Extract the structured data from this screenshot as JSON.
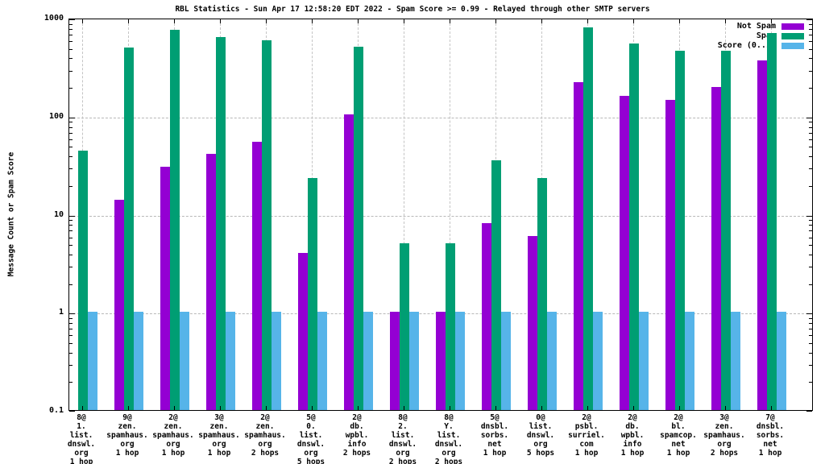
{
  "chart_data": {
    "type": "bar",
    "scale": "log",
    "title": "RBL Statistics - Sun Apr 17 12:58:20 EDT 2022 - Spam Score >= 0.99 - Relayed through other SMTP servers",
    "ylabel": "Message Count or Spam Score",
    "ylim": [
      0.1,
      1000
    ],
    "ytick_labels": [
      "1000",
      "100",
      "10",
      "1",
      "0.1"
    ],
    "ytick_values": [
      1000,
      100,
      10,
      1,
      0.1
    ],
    "grid_h_values": [
      1,
      10,
      100
    ],
    "grid": "on",
    "legend_position": "top-right-inside",
    "categories": [
      [
        "8@",
        "1.",
        "list.",
        "dnswl.",
        "org",
        "1 hop"
      ],
      [
        "9@",
        "zen.",
        "spamhaus.",
        "org",
        "1 hop"
      ],
      [
        "2@",
        "zen.",
        "spamhaus.",
        "org",
        "1 hop"
      ],
      [
        "3@",
        "zen.",
        "spamhaus.",
        "org",
        "1 hop"
      ],
      [
        "2@",
        "zen.",
        "spamhaus.",
        "org",
        "2 hops"
      ],
      [
        "5@",
        "0.",
        "list.",
        "dnswl.",
        "org",
        "5 hops"
      ],
      [
        "2@",
        "db.",
        "wpbl.",
        "info",
        "2 hops"
      ],
      [
        "8@",
        "2.",
        "list.",
        "dnswl.",
        "org",
        "2 hops"
      ],
      [
        "8@",
        "Y.",
        "list.",
        "dnswl.",
        "org",
        "2 hops"
      ],
      [
        "5@",
        "dnsbl.",
        "sorbs.",
        "net",
        "1 hop"
      ],
      [
        "0@",
        "list.",
        "dnswl.",
        "org",
        "5 hops"
      ],
      [
        "2@",
        "psbl.",
        "surriel.",
        "com",
        "1 hop"
      ],
      [
        "2@",
        "db.",
        "wpbl.",
        "info",
        "1 hop"
      ],
      [
        "2@",
        "bl.",
        "spamcop.",
        "net",
        "1 hop"
      ],
      [
        "3@",
        "zen.",
        "spamhaus.",
        "org",
        "2 hops"
      ],
      [
        "7@",
        "dnsbl.",
        "sorbs.",
        "net",
        "1 hop"
      ]
    ],
    "series": [
      {
        "name": "Not Spam",
        "color": "#9400d3",
        "values": [
          null,
          14,
          30,
          41,
          54,
          4,
          104,
          1,
          1,
          8,
          6,
          220,
          160,
          145,
          195,
          365
        ]
      },
      {
        "name": "Spam",
        "color": "#009e73",
        "values": [
          44,
          500,
          750,
          640,
          590,
          23,
          510,
          5,
          5,
          35,
          23,
          800,
          550,
          460,
          460,
          700
        ]
      },
      {
        "name": "Score (0..1)",
        "color": "#56b4e9",
        "values": [
          1,
          1,
          1,
          1,
          1,
          1,
          1,
          1,
          1,
          1,
          1,
          1,
          1,
          1,
          1,
          1
        ]
      }
    ]
  }
}
